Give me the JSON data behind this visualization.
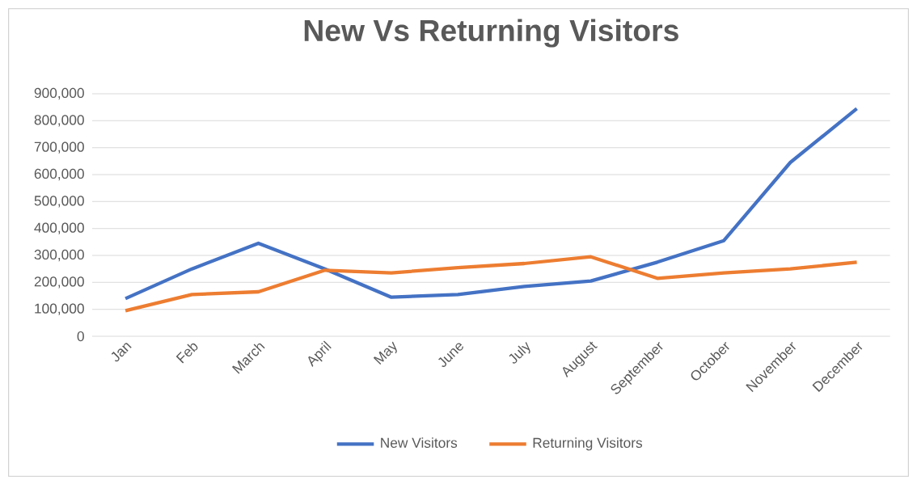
{
  "chart_data": {
    "type": "line",
    "title": "New Vs Returning Visitors",
    "categories": [
      "Jan",
      "Feb",
      "March",
      "April",
      "May",
      "June",
      "July",
      "August",
      "September",
      "October",
      "November",
      "December"
    ],
    "series": [
      {
        "name": "New Visitors",
        "color": "#4472c4",
        "values": [
          140000,
          250000,
          345000,
          250000,
          145000,
          155000,
          185000,
          205000,
          275000,
          355000,
          645000,
          845000
        ]
      },
      {
        "name": "Returning Visitors",
        "color": "#ed7d31",
        "values": [
          95000,
          155000,
          165000,
          245000,
          235000,
          255000,
          270000,
          295000,
          215000,
          235000,
          250000,
          275000
        ]
      }
    ],
    "ylim": [
      0,
      900000
    ],
    "yticks": [
      {
        "value": 0,
        "label": "0"
      },
      {
        "value": 100000,
        "label": "100,000"
      },
      {
        "value": 200000,
        "label": "200,000"
      },
      {
        "value": 300000,
        "label": "300,000"
      },
      {
        "value": 400000,
        "label": "400,000"
      },
      {
        "value": 500000,
        "label": "500,000"
      },
      {
        "value": 600000,
        "label": "600,000"
      },
      {
        "value": 700000,
        "label": "700,000"
      },
      {
        "value": 800000,
        "label": "800,000"
      },
      {
        "value": 900000,
        "label": "900,000"
      }
    ],
    "grid": "y",
    "legend": "bottom",
    "marker": "none",
    "line_style": "solid"
  }
}
